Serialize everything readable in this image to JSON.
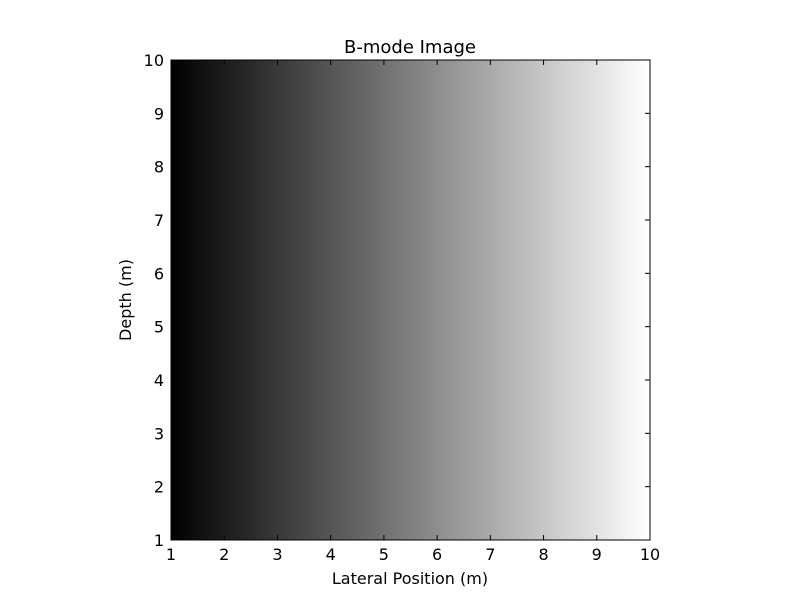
{
  "chart_data": {
    "type": "heatmap",
    "title": "B-mode Image",
    "xlabel": "Lateral Position (m)",
    "ylabel": "Depth (m)",
    "xlim": [
      1,
      10
    ],
    "ylim": [
      1,
      10
    ],
    "xticks": [
      "1",
      "2",
      "3",
      "4",
      "5",
      "6",
      "7",
      "8",
      "9",
      "10"
    ],
    "yticks": [
      "1",
      "2",
      "3",
      "4",
      "5",
      "6",
      "7",
      "8",
      "9",
      "10"
    ],
    "colormap": "gray",
    "color_low": "#000000",
    "color_high": "#ffffff",
    "intensity_direction": "increases left to right",
    "value_range": [
      0,
      1
    ],
    "grid": false
  }
}
